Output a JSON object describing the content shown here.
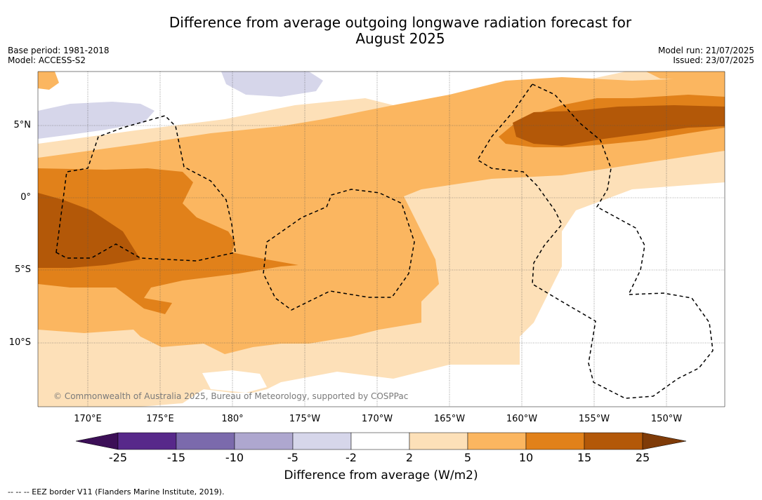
{
  "title_line1": "Difference from average outgoing longwave radiation forecast for",
  "title_line2": "August 2025",
  "base_period": "Base period: 1981-2018",
  "model": "Model: ACCESS-S2",
  "model_run": "Model run: 21/07/2025",
  "issued": "Issued: 23/07/2025",
  "copyright": "© Commonwealth of Australia 2025, Bureau of Meteorology, supported by COSPPac",
  "longitude_labels": [
    "170°E",
    "175°E",
    "180°",
    "175°W",
    "170°W",
    "165°W",
    "160°W",
    "155°W",
    "150°W"
  ],
  "latitude_labels": [
    "5°N",
    "0°",
    "5°S",
    "10°S"
  ],
  "colorbar": {
    "title": "Difference from average (W/m2)",
    "tick_labels": [
      "-25",
      "-15",
      "-10",
      "-5",
      "-2",
      "2",
      "5",
      "10",
      "15",
      "25"
    ],
    "colors": [
      "#3c0f57",
      "#57288a",
      "#7b6aac",
      "#aea7cf",
      "#d6d6ea",
      "#ffffff",
      "#fde0b8",
      "#fbb660",
      "#e1811a",
      "#b35808",
      "#7f3b08"
    ]
  },
  "footnote": "-- -- -- EEZ border V11 (Flanders Marine Institute, 2019)."
}
